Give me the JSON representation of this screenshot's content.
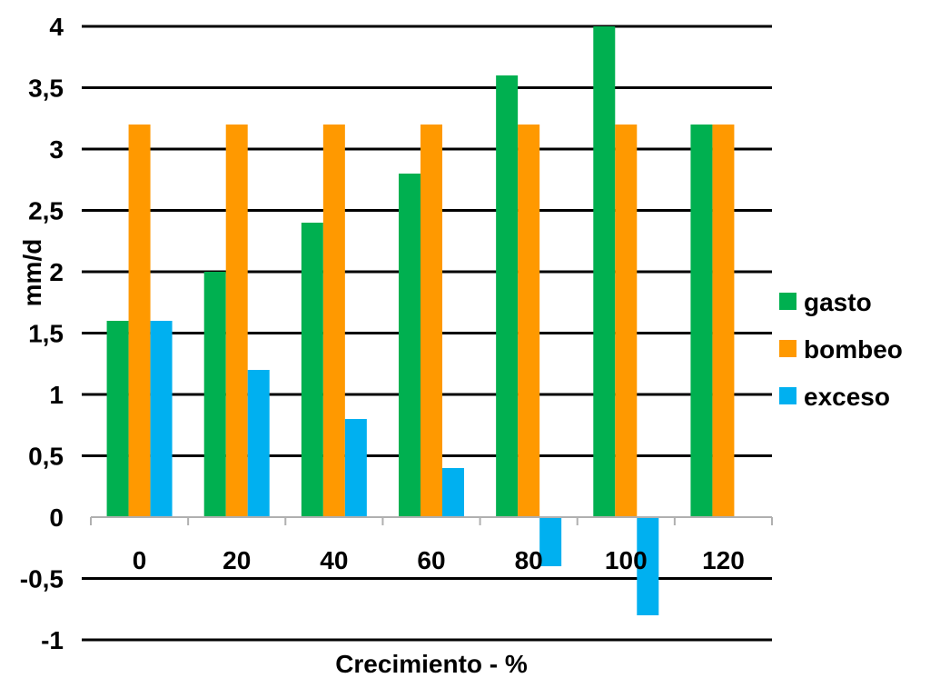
{
  "chart_data": {
    "type": "bar",
    "categories": [
      "0",
      "20",
      "40",
      "60",
      "80",
      "100",
      "120"
    ],
    "series": [
      {
        "name": "gasto",
        "color": "#00b050",
        "values": [
          1.6,
          2.0,
          2.4,
          2.8,
          3.6,
          4.0,
          3.2
        ]
      },
      {
        "name": "bombeo",
        "color": "#ff9900",
        "values": [
          3.2,
          3.2,
          3.2,
          3.2,
          3.2,
          3.2,
          3.2
        ]
      },
      {
        "name": "exceso",
        "color": "#00b0f0",
        "values": [
          1.6,
          1.2,
          0.8,
          0.4,
          -0.4,
          -0.8,
          0
        ]
      }
    ],
    "xlabel": "Crecimiento - %",
    "ylabel": "mm/d",
    "ylim": [
      -1,
      4
    ],
    "yticks": [
      "-1",
      "-0,5",
      "0",
      "0,5",
      "1",
      "1,5",
      "2",
      "2,5",
      "3",
      "3,5",
      "4"
    ],
    "grid": true,
    "legend_position": "right"
  }
}
